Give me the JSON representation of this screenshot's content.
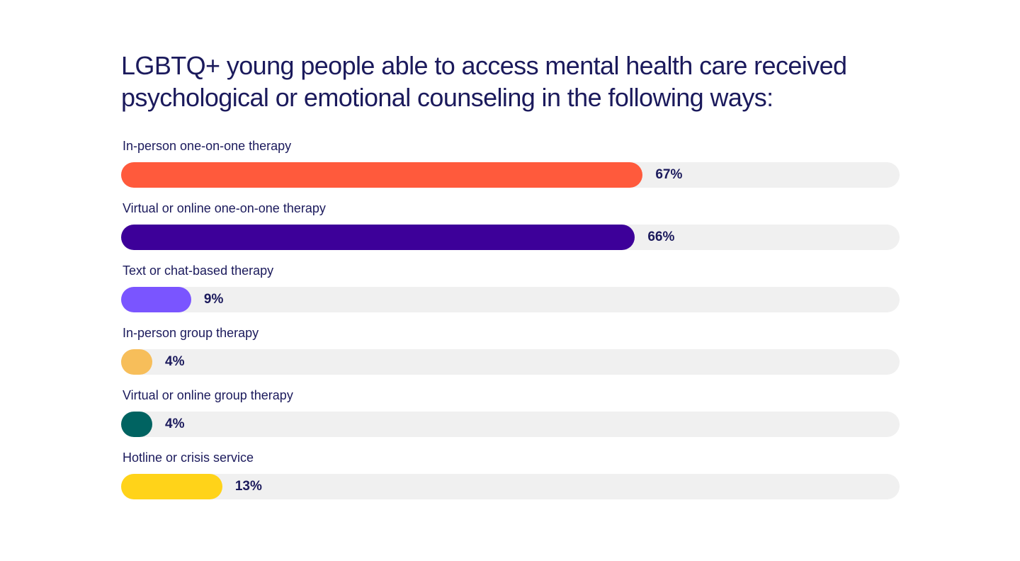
{
  "chart_data": {
    "type": "bar",
    "orientation": "horizontal",
    "title": "LGBTQ+ young people able to access mental health care received psychological or emotional counseling in the following ways:",
    "categories": [
      "In-person one-on-one therapy",
      "Virtual or online one-on-one therapy",
      "Text or chat-based therapy",
      "In-person group therapy",
      "Virtual or online group therapy",
      "Hotline or crisis service"
    ],
    "values": [
      67,
      66,
      9,
      4,
      4,
      13
    ],
    "value_labels": [
      "67%",
      "66%",
      "9%",
      "4%",
      "4%",
      "13%"
    ],
    "colors": [
      "#ff5a3c",
      "#3d0099",
      "#7a55ff",
      "#f7be5a",
      "#006361",
      "#ffd319"
    ],
    "track_color": "#f0f0f0",
    "xlim": [
      0,
      100
    ],
    "grid": false,
    "legend": "none"
  }
}
